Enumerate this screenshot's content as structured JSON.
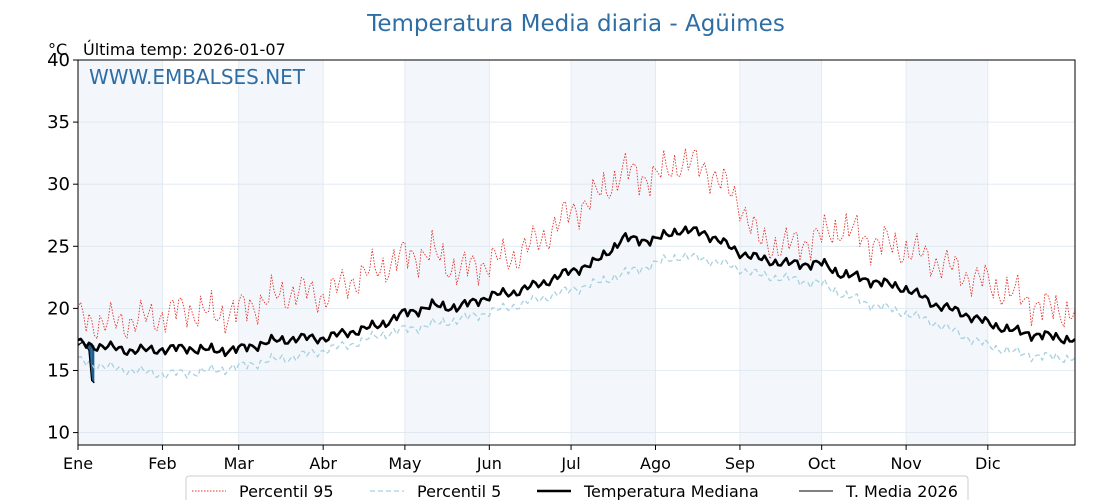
{
  "chart_data": {
    "type": "line",
    "title": "Temperatura Media diaria - Agüimes",
    "unit_label": "°C",
    "last_temp_label": "Última temp: 2026-01-07",
    "watermark": "WWW.EMBALSES.NET",
    "ylim": [
      9,
      40
    ],
    "yticks": [
      10,
      15,
      20,
      25,
      30,
      35,
      40
    ],
    "xlim": [
      0,
      366
    ],
    "months": [
      "Ene",
      "Feb",
      "Mar",
      "Abr",
      "May",
      "Jun",
      "Jul",
      "Ago",
      "Sep",
      "Oct",
      "Nov",
      "Dic"
    ],
    "month_start_days": [
      0,
      31,
      59,
      90,
      120,
      151,
      181,
      212,
      243,
      273,
      304,
      334
    ],
    "shaded_month_indices": [
      0,
      2,
      4,
      6,
      8,
      10
    ],
    "legend": [
      "Percentil 95",
      "Percentil 5",
      "Temperatura Mediana",
      "T. Media 2026"
    ],
    "colors": {
      "p95": "#e0322c",
      "p5": "#a7d1e0",
      "median": "#000000",
      "current": "#000000",
      "fill_above": "#a9c6dc",
      "fill_below": "#1f5f8f",
      "title": "#2f6ea5",
      "shade": "#f3f7fb",
      "grid": "#dde6ef"
    },
    "series": [
      {
        "name": "Percentil 95",
        "key": "p95",
        "style": "dotted",
        "x": [
          0,
          10,
          20,
          31,
          40,
          50,
          59,
          70,
          80,
          90,
          100,
          110,
          120,
          130,
          140,
          151,
          160,
          170,
          181,
          190,
          200,
          212,
          220,
          230,
          243,
          250,
          260,
          273,
          280,
          290,
          304,
          315,
          325,
          334,
          345,
          355,
          365
        ],
        "values": [
          19.2,
          18.8,
          19.0,
          19.4,
          20.0,
          19.5,
          19.8,
          20.8,
          21.4,
          21.0,
          22.2,
          23.2,
          24.2,
          24.5,
          23.0,
          23.8,
          24.2,
          25.6,
          27.8,
          29.0,
          31.0,
          30.5,
          31.8,
          31.4,
          28.6,
          25.4,
          25.0,
          25.8,
          26.6,
          25.5,
          24.8,
          23.8,
          22.8,
          22.0,
          21.0,
          20.0,
          19.8
        ]
      },
      {
        "name": "Percentil 5",
        "key": "p5",
        "style": "dashed",
        "x": [
          0,
          10,
          20,
          31,
          40,
          50,
          59,
          70,
          80,
          90,
          100,
          110,
          120,
          130,
          140,
          151,
          160,
          170,
          181,
          190,
          200,
          212,
          220,
          230,
          243,
          250,
          260,
          273,
          280,
          290,
          304,
          315,
          325,
          334,
          345,
          355,
          365
        ],
        "values": [
          15.8,
          15.3,
          15.0,
          14.7,
          14.8,
          15.0,
          15.3,
          15.8,
          16.1,
          16.6,
          17.1,
          17.8,
          18.3,
          18.7,
          19.1,
          19.7,
          20.2,
          20.8,
          21.5,
          22.0,
          22.8,
          23.6,
          24.2,
          24.0,
          23.2,
          22.7,
          22.4,
          22.0,
          21.2,
          20.4,
          19.6,
          18.8,
          17.8,
          17.0,
          16.4,
          16.1,
          16.0
        ]
      },
      {
        "name": "Temperatura Mediana",
        "key": "median",
        "style": "solid",
        "x": [
          0,
          10,
          20,
          31,
          40,
          50,
          59,
          70,
          80,
          90,
          100,
          110,
          120,
          130,
          140,
          151,
          160,
          170,
          181,
          190,
          200,
          212,
          220,
          230,
          243,
          250,
          260,
          273,
          280,
          290,
          304,
          315,
          325,
          334,
          345,
          355,
          365
        ],
        "values": [
          17.2,
          16.9,
          16.6,
          16.7,
          16.8,
          16.6,
          16.7,
          17.3,
          17.6,
          17.6,
          18.1,
          18.6,
          19.6,
          20.2,
          20.1,
          21.0,
          21.3,
          22.0,
          23.0,
          23.7,
          25.6,
          25.5,
          26.3,
          26.1,
          24.5,
          24.0,
          23.6,
          23.6,
          22.8,
          22.3,
          21.6,
          20.3,
          19.6,
          18.8,
          18.1,
          17.8,
          17.5
        ]
      },
      {
        "name": "T. Media 2026",
        "key": "current",
        "style": "solid",
        "x": [
          0,
          1,
          2,
          3,
          4,
          5,
          6
        ],
        "values": [
          17.0,
          17.2,
          17.3,
          17.0,
          16.6,
          14.2,
          14.0
        ]
      }
    ]
  }
}
